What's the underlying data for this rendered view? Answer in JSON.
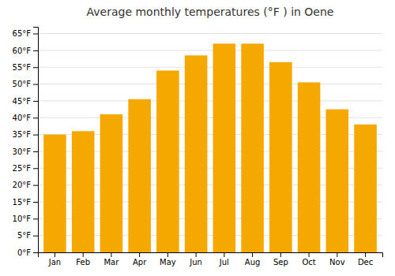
{
  "chart_data": {
    "type": "bar",
    "title": "Average monthly temperatures (°F ) in Oene",
    "categories": [
      "Jan",
      "Feb",
      "Mar",
      "Apr",
      "May",
      "Jun",
      "Jul",
      "Aug",
      "Sep",
      "Oct",
      "Nov",
      "Dec"
    ],
    "values": [
      35,
      36,
      41,
      45.5,
      54,
      58.5,
      62,
      62,
      56.5,
      50.5,
      42.5,
      38
    ],
    "color": "#F5A800",
    "ylim": [
      0,
      67
    ],
    "yticks": [
      {
        "value": 0,
        "label": "0°F"
      },
      {
        "value": 5,
        "label": "5°F"
      },
      {
        "value": 10,
        "label": "10°F"
      },
      {
        "value": 15,
        "label": "15°F"
      },
      {
        "value": 20,
        "label": "20°F"
      },
      {
        "value": 25,
        "label": "25°F"
      },
      {
        "value": 30,
        "label": "30°F"
      },
      {
        "value": 35,
        "label": "35°F"
      },
      {
        "value": 40,
        "label": "40°F"
      },
      {
        "value": 45,
        "label": "45°F"
      },
      {
        "value": 50,
        "label": "50°F"
      },
      {
        "value": 55,
        "label": "55°F"
      },
      {
        "value": 60,
        "label": "60°F"
      },
      {
        "value": 65,
        "label": "65°F"
      }
    ],
    "grid": true
  }
}
